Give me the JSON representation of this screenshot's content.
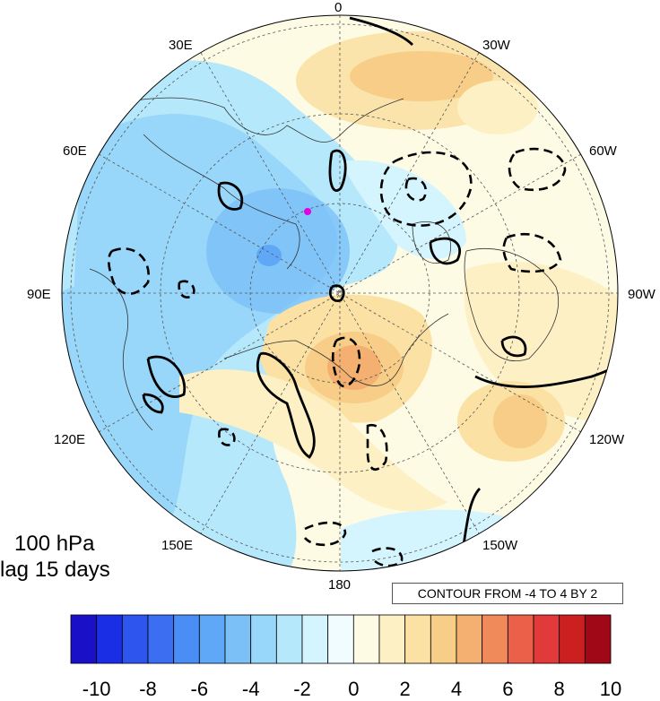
{
  "map": {
    "projection": "north-polar-stereographic",
    "marker_color": "#e000e0",
    "longitude_labels": {
      "top": "0",
      "bottom": "180",
      "left": "90E",
      "right": "90W",
      "upper_left_1": "30E",
      "upper_left_2": "60E",
      "upper_right_1": "30W",
      "upper_right_2": "60W",
      "lower_left_1": "120E",
      "lower_left_2": "150E",
      "lower_right_1": "120W",
      "lower_right_2": "150W"
    }
  },
  "panel": {
    "level": "100 hPa",
    "lag": "lag 15 days"
  },
  "contour_info": "CONTOUR FROM -4 TO 4 BY 2",
  "colorbar": {
    "colors": [
      "#1a10c8",
      "#1a2ee6",
      "#2e56ee",
      "#3c6ef2",
      "#4a8ef5",
      "#5fa8f7",
      "#7cc0f8",
      "#98d6fa",
      "#b6e8fc",
      "#d4f4fe",
      "#f0fcff",
      "#fefbe4",
      "#fdf0c4",
      "#fbe1a4",
      "#f7cd88",
      "#f4b070",
      "#f08a5a",
      "#ea6048",
      "#e23a3a",
      "#cc2020",
      "#a00818"
    ],
    "labels": [
      "-10",
      "-8",
      "-6",
      "-4",
      "-2",
      "0",
      "2",
      "4",
      "6",
      "8",
      "10"
    ]
  }
}
